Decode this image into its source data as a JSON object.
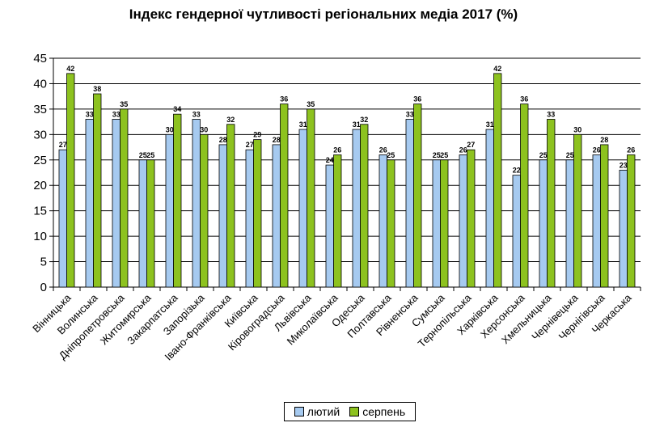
{
  "chart_data": {
    "type": "bar",
    "title": "Індекс гендерної чутливості регіональних медіа 2017 (%)",
    "xlabel": "",
    "ylabel": "",
    "ylim": [
      0,
      45
    ],
    "yticks": [
      0,
      5,
      10,
      15,
      20,
      25,
      30,
      35,
      40,
      45
    ],
    "grid": true,
    "legend_position": "bottom",
    "categories": [
      "Вінницька",
      "Волинська",
      "Дніпропетровська",
      "Житомирська",
      "Закарпатська",
      "Запорізька",
      "Івано-Франківська",
      "Київська",
      "Кіровоградська",
      "Львівська",
      "Миколаївська",
      "Одеська",
      "Полтавська",
      "Рівненська",
      "Сумська",
      "Тернопільська",
      "Харківська",
      "Херсонська",
      "Хмельницька",
      "Чернівецька",
      "Чернігівська",
      "Черкаська"
    ],
    "series": [
      {
        "name": "лютий",
        "color": "#a6caf0",
        "values": [
          27,
          33,
          33,
          25,
          30,
          33,
          28,
          27,
          28,
          31,
          24,
          31,
          26,
          33,
          25,
          26,
          31,
          22,
          25,
          25,
          26,
          23
        ]
      },
      {
        "name": "серпень",
        "color": "#8dc21f",
        "values": [
          42,
          38,
          35,
          25,
          34,
          30,
          32,
          29,
          36,
          35,
          26,
          32,
          25,
          36,
          25,
          27,
          42,
          36,
          33,
          30,
          28,
          26
        ]
      }
    ]
  }
}
